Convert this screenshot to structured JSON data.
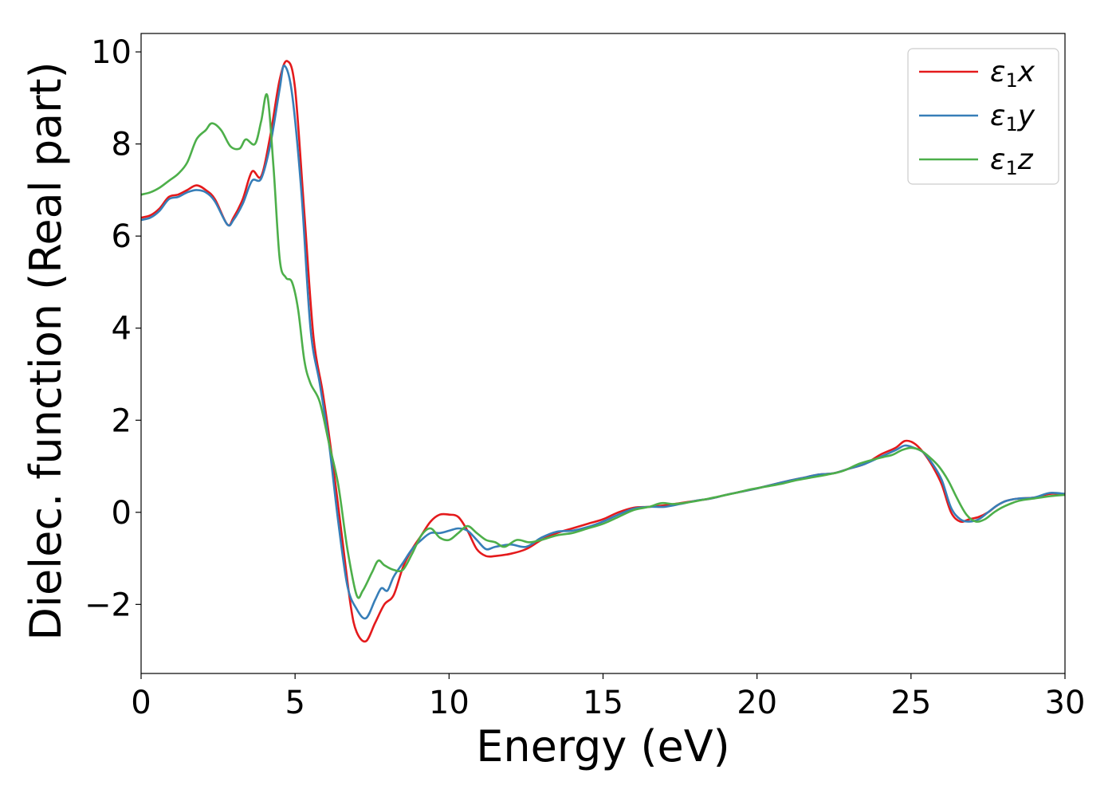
{
  "chart_data": {
    "type": "line",
    "xlabel": "Energy (eV)",
    "ylabel": "Dielec. function (Real part)",
    "xlim": [
      0,
      30
    ],
    "ylim": [
      -3.5,
      10.4
    ],
    "xticks": [
      0,
      5,
      10,
      15,
      20,
      25,
      30
    ],
    "yticks": [
      -2,
      0,
      2,
      4,
      6,
      8,
      10
    ],
    "ytick_labels": [
      "−2",
      "0",
      "2",
      "4",
      "6",
      "8",
      "10"
    ],
    "legend_position": "top-right",
    "grid": false,
    "series": [
      {
        "name": "ε₁x",
        "label_base": "ε",
        "label_sub": "1",
        "label_suffix": "x",
        "color": "#e41a1c",
        "x": [
          0,
          0.3,
          0.6,
          0.9,
          1.2,
          1.5,
          1.8,
          2.1,
          2.4,
          2.8,
          3.0,
          3.3,
          3.6,
          3.9,
          4.2,
          4.5,
          4.75,
          5.0,
          5.3,
          5.6,
          5.9,
          6.2,
          6.5,
          6.8,
          7.0,
          7.3,
          7.6,
          7.9,
          8.2,
          8.5,
          8.8,
          9.1,
          9.4,
          9.7,
          10.0,
          10.3,
          10.6,
          10.9,
          11.2,
          11.5,
          12.0,
          12.5,
          13.0,
          13.5,
          14.0,
          14.5,
          15.0,
          15.5,
          16.0,
          16.5,
          17.0,
          17.5,
          18.0,
          18.5,
          19.0,
          19.5,
          20.0,
          20.5,
          21.0,
          21.5,
          22.0,
          22.5,
          23.0,
          23.5,
          24.0,
          24.5,
          24.8,
          25.1,
          25.4,
          25.7,
          26.0,
          26.3,
          26.6,
          26.9,
          27.2,
          27.5,
          27.8,
          28.1,
          28.5,
          29.0,
          29.5,
          30.0
        ],
        "y": [
          6.4,
          6.45,
          6.6,
          6.85,
          6.9,
          7.0,
          7.1,
          7.0,
          6.8,
          6.25,
          6.4,
          6.8,
          7.4,
          7.3,
          8.2,
          9.4,
          9.8,
          9.2,
          6.5,
          3.8,
          2.6,
          1.2,
          -0.4,
          -2.0,
          -2.6,
          -2.8,
          -2.4,
          -2.0,
          -1.8,
          -1.2,
          -0.8,
          -0.5,
          -0.2,
          -0.05,
          -0.05,
          -0.1,
          -0.4,
          -0.8,
          -0.95,
          -0.95,
          -0.9,
          -0.8,
          -0.6,
          -0.45,
          -0.35,
          -0.25,
          -0.15,
          0.0,
          0.1,
          0.12,
          0.15,
          0.2,
          0.25,
          0.3,
          0.38,
          0.45,
          0.52,
          0.6,
          0.68,
          0.75,
          0.82,
          0.85,
          0.95,
          1.05,
          1.25,
          1.4,
          1.55,
          1.5,
          1.3,
          1.0,
          0.6,
          0.0,
          -0.2,
          -0.15,
          -0.1,
          0.0,
          0.15,
          0.25,
          0.3,
          0.32,
          0.4,
          0.4
        ]
      },
      {
        "name": "ε₁y",
        "label_base": "ε",
        "label_sub": "1",
        "label_suffix": "y",
        "color": "#377eb8",
        "x": [
          0,
          0.3,
          0.6,
          0.9,
          1.2,
          1.5,
          1.8,
          2.1,
          2.4,
          2.8,
          3.0,
          3.3,
          3.6,
          3.9,
          4.2,
          4.5,
          4.65,
          4.9,
          5.2,
          5.5,
          5.8,
          6.1,
          6.4,
          6.7,
          7.0,
          7.3,
          7.6,
          7.8,
          8.0,
          8.2,
          8.5,
          8.8,
          9.1,
          9.4,
          9.7,
          10.0,
          10.3,
          10.6,
          10.9,
          11.2,
          11.5,
          12.0,
          12.5,
          13.0,
          13.5,
          14.0,
          14.5,
          15.0,
          15.5,
          16.0,
          16.5,
          17.0,
          17.5,
          18.0,
          18.5,
          19.0,
          19.5,
          20.0,
          20.5,
          21.0,
          21.5,
          22.0,
          22.5,
          23.0,
          23.5,
          24.0,
          24.5,
          24.8,
          25.1,
          25.4,
          25.7,
          26.0,
          26.3,
          26.6,
          26.9,
          27.2,
          27.5,
          27.8,
          28.1,
          28.5,
          29.0,
          29.5,
          30.0
        ],
        "y": [
          6.35,
          6.4,
          6.55,
          6.8,
          6.85,
          6.95,
          7.0,
          6.95,
          6.75,
          6.25,
          6.35,
          6.7,
          7.2,
          7.25,
          8.0,
          9.2,
          9.7,
          9.1,
          7.0,
          4.0,
          2.8,
          1.5,
          -0.2,
          -1.6,
          -2.1,
          -2.3,
          -1.9,
          -1.65,
          -1.7,
          -1.4,
          -1.1,
          -0.8,
          -0.6,
          -0.45,
          -0.45,
          -0.4,
          -0.35,
          -0.4,
          -0.6,
          -0.8,
          -0.75,
          -0.7,
          -0.75,
          -0.55,
          -0.42,
          -0.4,
          -0.32,
          -0.2,
          -0.05,
          0.08,
          0.12,
          0.12,
          0.18,
          0.25,
          0.3,
          0.38,
          0.45,
          0.52,
          0.6,
          0.68,
          0.75,
          0.82,
          0.85,
          0.95,
          1.05,
          1.2,
          1.35,
          1.45,
          1.4,
          1.3,
          1.05,
          0.7,
          0.1,
          -0.15,
          -0.2,
          -0.15,
          0.0,
          0.15,
          0.25,
          0.3,
          0.32,
          0.42,
          0.4
        ]
      },
      {
        "name": "ε₁z",
        "label_base": "ε",
        "label_sub": "1",
        "label_suffix": "z",
        "color": "#4daf4a",
        "x": [
          0,
          0.3,
          0.6,
          0.9,
          1.2,
          1.5,
          1.8,
          2.1,
          2.3,
          2.6,
          2.9,
          3.2,
          3.4,
          3.7,
          3.9,
          4.1,
          4.3,
          4.5,
          4.7,
          4.9,
          5.1,
          5.3,
          5.5,
          5.8,
          6.1,
          6.4,
          6.7,
          7.0,
          7.2,
          7.5,
          7.7,
          7.9,
          8.2,
          8.5,
          8.8,
          9.1,
          9.4,
          9.7,
          10.0,
          10.3,
          10.6,
          10.9,
          11.2,
          11.5,
          11.8,
          12.2,
          12.6,
          13.0,
          13.5,
          14.0,
          14.5,
          15.0,
          15.5,
          16.0,
          16.5,
          16.9,
          17.3,
          17.8,
          18.3,
          18.8,
          19.3,
          19.8,
          20.3,
          20.8,
          21.3,
          21.8,
          22.3,
          22.8,
          23.3,
          23.8,
          24.1,
          24.4,
          24.7,
          25.0,
          25.3,
          25.6,
          25.9,
          26.2,
          26.5,
          26.8,
          27.1,
          27.4,
          27.7,
          28.0,
          28.5,
          29.0,
          29.5,
          30.0
        ],
        "y": [
          6.9,
          6.95,
          7.05,
          7.2,
          7.35,
          7.6,
          8.1,
          8.3,
          8.45,
          8.3,
          7.95,
          7.9,
          8.1,
          8.0,
          8.5,
          9.05,
          7.5,
          5.5,
          5.1,
          5.0,
          4.4,
          3.3,
          2.8,
          2.4,
          1.5,
          0.6,
          -0.8,
          -1.8,
          -1.7,
          -1.3,
          -1.05,
          -1.15,
          -1.25,
          -1.25,
          -0.9,
          -0.5,
          -0.35,
          -0.55,
          -0.6,
          -0.45,
          -0.3,
          -0.45,
          -0.6,
          -0.65,
          -0.75,
          -0.6,
          -0.65,
          -0.6,
          -0.5,
          -0.45,
          -0.35,
          -0.25,
          -0.1,
          0.05,
          0.12,
          0.2,
          0.18,
          0.22,
          0.28,
          0.35,
          0.42,
          0.5,
          0.56,
          0.62,
          0.7,
          0.76,
          0.82,
          0.9,
          1.05,
          1.15,
          1.2,
          1.25,
          1.35,
          1.4,
          1.35,
          1.2,
          1.0,
          0.7,
          0.3,
          -0.05,
          -0.2,
          -0.15,
          0.0,
          0.12,
          0.25,
          0.3,
          0.35,
          0.38
        ]
      }
    ]
  }
}
